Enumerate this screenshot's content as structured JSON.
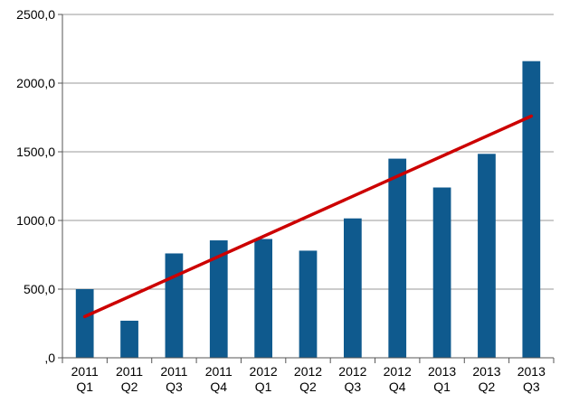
{
  "chart_data": {
    "type": "bar",
    "title": "",
    "xlabel": "",
    "ylabel": "",
    "ylim": [
      0,
      2500
    ],
    "yticks": [
      0,
      500,
      1000,
      1500,
      2000,
      2500
    ],
    "ytick_labels": [
      ",0",
      "500,0",
      "1000,0",
      "1500,0",
      "2000,0",
      "2500,0"
    ],
    "grid": true,
    "legend": "none",
    "categories": [
      [
        "2011",
        "Q1"
      ],
      [
        "2011",
        "Q2"
      ],
      [
        "2011",
        "Q3"
      ],
      [
        "2011",
        "Q4"
      ],
      [
        "2012",
        "Q1"
      ],
      [
        "2012",
        "Q2"
      ],
      [
        "2012",
        "Q3"
      ],
      [
        "2012",
        "Q4"
      ],
      [
        "2013",
        "Q1"
      ],
      [
        "2013",
        "Q2"
      ],
      [
        "2013",
        "Q3"
      ]
    ],
    "series": [
      {
        "type": "bar",
        "color": "#0f5a8e",
        "values": [
          500,
          270,
          760,
          855,
          865,
          780,
          1015,
          1450,
          1240,
          1485,
          2160
        ]
      },
      {
        "type": "line",
        "color": "#cc0000",
        "start": {
          "category": 0,
          "value": 300
        },
        "end": {
          "category": 10,
          "value": 1760
        }
      }
    ],
    "colors": {
      "grid": "#9a9a9a",
      "axis": "#555555",
      "text": "#000000"
    }
  }
}
